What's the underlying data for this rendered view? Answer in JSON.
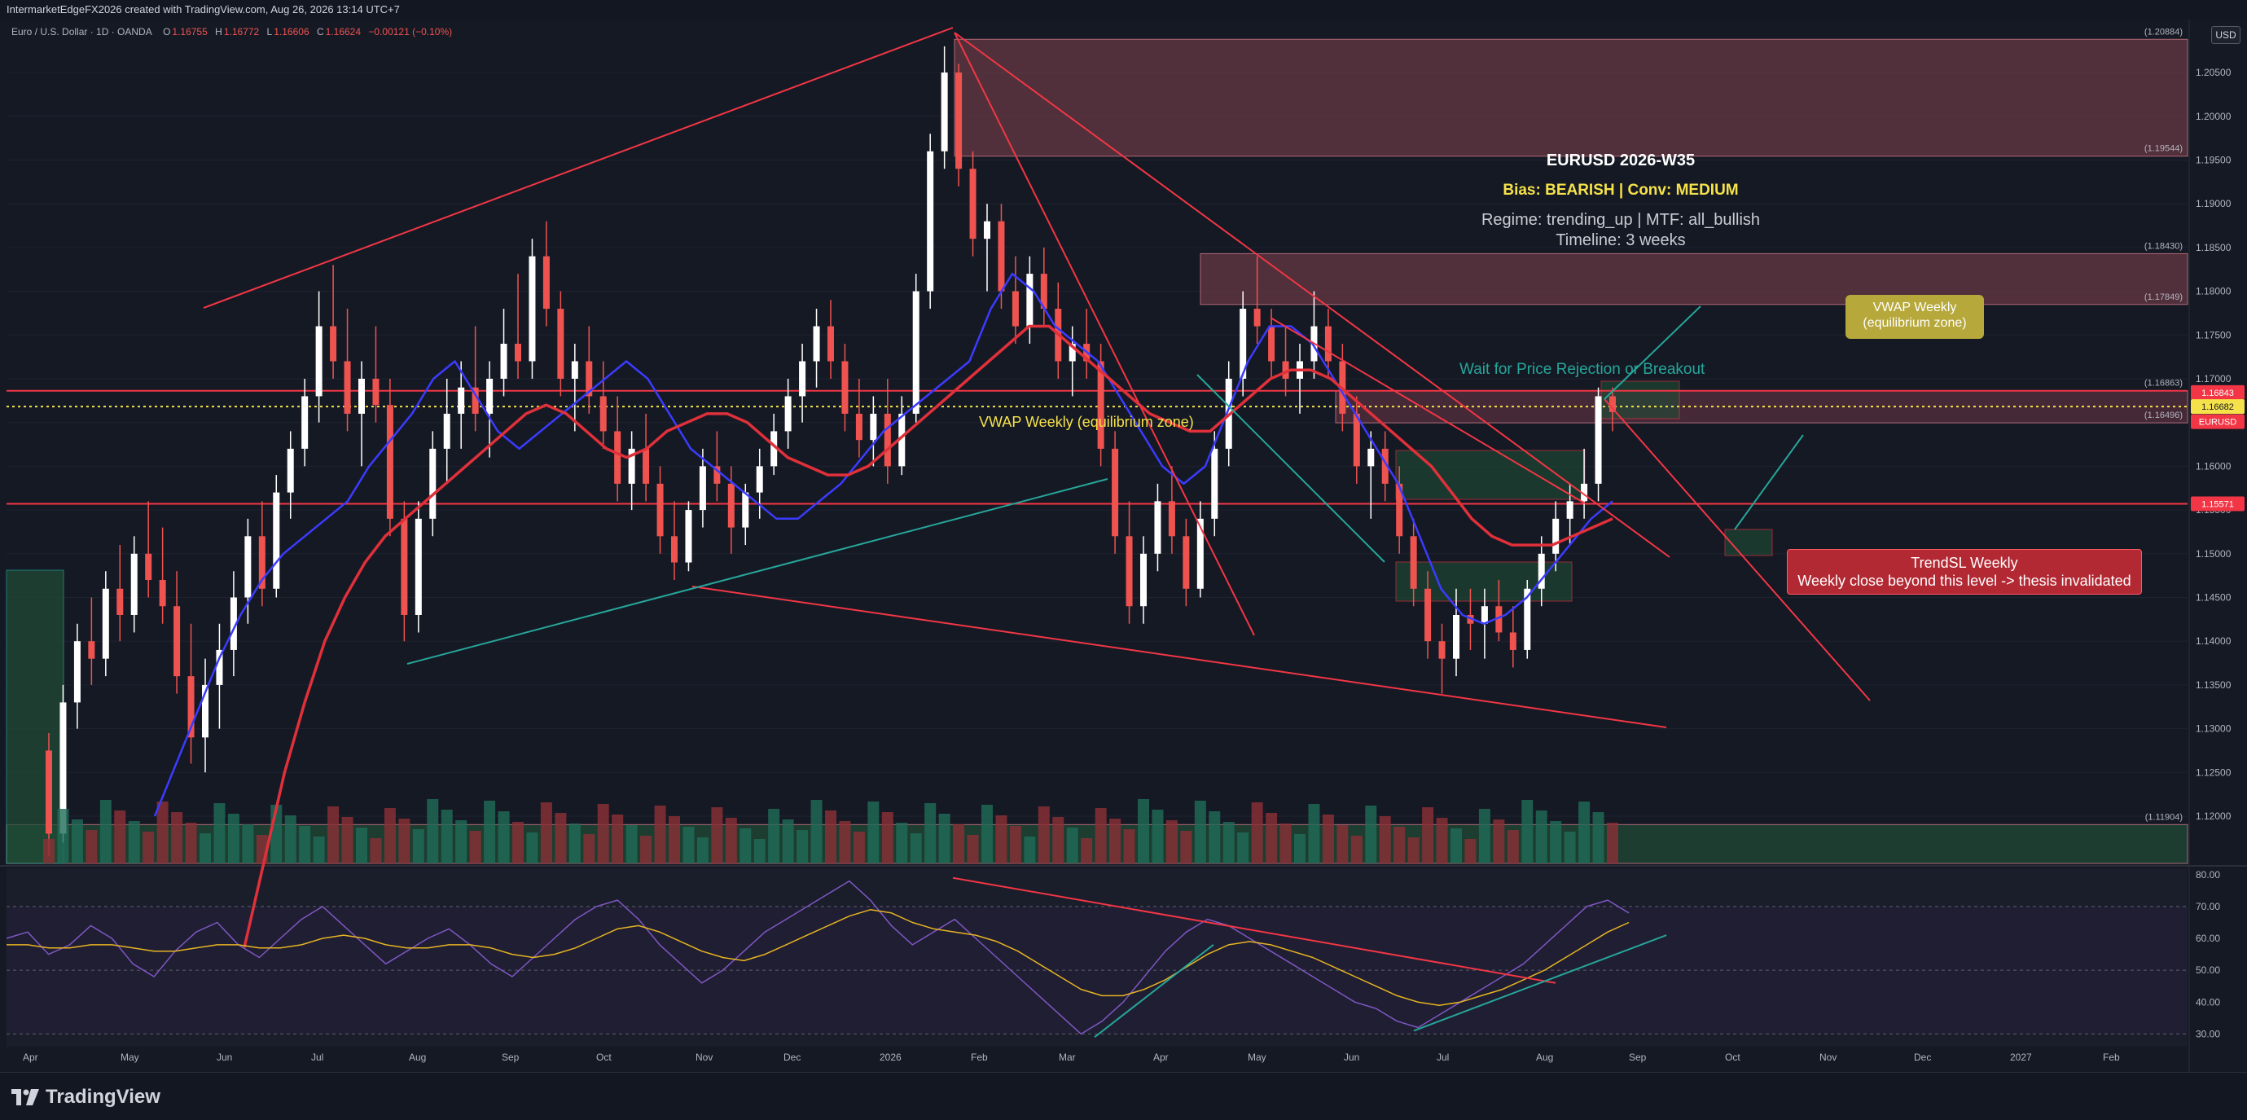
{
  "header": {
    "credit": "IntermarketEdgeFX2026 created with TradingView.com, Aug 26, 2026 13:14 UTC+7",
    "symbol": "Euro / U.S. Dollar · 1D · OANDA",
    "ohlc": {
      "o": "1.16755",
      "h": "1.16772",
      "l": "1.16606",
      "c": "1.16624",
      "chg": "−0.00121 (−0.10%)"
    },
    "currency": "USD"
  },
  "footer": {
    "logo_text": "TradingView"
  },
  "annotations": {
    "title": "EURUSD 2026-W35",
    "bias": "Bias: BEARISH | Conv: MEDIUM",
    "regime": "Regime: trending_up | MTF: all_bullish",
    "timeline": "Timeline: 3 weeks",
    "vwap_inline": "VWAP Weekly (equilibrium zone)",
    "wait": "Wait for Price Rejection or Breakout",
    "vwap_box_line1": "VWAP Weekly",
    "vwap_box_line2": "(equilibrium zone)",
    "trendsl_line1": "TrendSL Weekly",
    "trendsl_line2": "Weekly close beyond this level -> thesis invalidated"
  },
  "colors": {
    "background": "#151924",
    "bull": "#ffffff",
    "bear": "#ef5350",
    "red_line": "#f23645",
    "teal": "#26a69a",
    "zone_red": "#6b3a45",
    "zone_green": "#1f4d36",
    "ema_blue": "#3b3bff",
    "ema_red": "#e0303a",
    "rsi": "#7e57c2",
    "rsi_ma": "#e6b422",
    "vwap_box": "#b6a83a",
    "trendsl_box": "#b22833"
  },
  "chart_data": [
    {
      "type": "candlestick",
      "title": "Euro / U.S. Dollar · 1D · OANDA",
      "x_ticks": [
        "Apr",
        "May",
        "Jun",
        "Jul",
        "Aug",
        "Sep",
        "Oct",
        "Nov",
        "Dec",
        "2026",
        "Feb",
        "Mar",
        "Apr",
        "May",
        "Jun",
        "Jul",
        "Aug",
        "Sep",
        "Oct",
        "Nov",
        "Dec",
        "2027",
        "Feb"
      ],
      "y_ticks": [
        "1.20500",
        "1.20000",
        "1.19500",
        "1.19000",
        "1.18500",
        "1.18000",
        "1.17500",
        "1.17000",
        "1.16500",
        "1.16000",
        "1.15500",
        "1.15000",
        "1.14500",
        "1.14000",
        "1.13500",
        "1.13000",
        "1.12500",
        "1.12000"
      ],
      "ylim": [
        1.1146,
        1.2105
      ],
      "price_tags": [
        {
          "label": "(1.20884)",
          "value": 1.2088
        },
        {
          "label": "(1.19544)",
          "value": 1.19544
        },
        {
          "label": "(1.18430)",
          "value": 1.1843
        },
        {
          "label": "(1.17849)",
          "value": 1.17849
        },
        {
          "label": "(1.16863)",
          "value": 1.16863
        },
        {
          "label": "(1.16496)",
          "value": 1.16496
        },
        {
          "label": "(1.11904)",
          "value": 1.11904
        }
      ],
      "axis_badges": [
        {
          "label": "1.16843",
          "value": 1.16843,
          "color": "#f23645"
        },
        {
          "label": "1.16682",
          "value": 1.16682,
          "color": "#f5e24a"
        },
        {
          "label": "EURUSD",
          "value": 1.1651,
          "color": "#f23645"
        },
        {
          "label": "1.15571",
          "value": 1.15571,
          "color": "#f23645"
        }
      ],
      "horizontal_lines": [
        {
          "name": "resistance",
          "value": 1.16863,
          "color": "#f23645"
        },
        {
          "name": "trendsl-weekly",
          "value": 1.15571,
          "color": "#f23645"
        },
        {
          "name": "vwap-weekly",
          "value": 1.16682,
          "color": "#f5e24a",
          "style": "dotted"
        }
      ],
      "zones": [
        {
          "name": "supply-zone-upper",
          "from": 1.19544,
          "to": 1.2088,
          "color": "#6b3a45"
        },
        {
          "name": "supply-zone-mid",
          "from": 1.17849,
          "to": 1.1843,
          "color": "#6b3a45"
        },
        {
          "name": "supply-zone-near",
          "from": 1.16496,
          "to": 1.16863,
          "color": "#5a3040"
        },
        {
          "name": "demand-zone-bottom",
          "from": 1.1146,
          "to": 1.11904,
          "color": "#1f4d36"
        }
      ],
      "candles": [
        [
          1.1275,
          1.1295,
          1.1155,
          1.118
        ],
        [
          1.118,
          1.135,
          1.117,
          1.133
        ],
        [
          1.133,
          1.142,
          1.13,
          1.14
        ],
        [
          1.14,
          1.145,
          1.135,
          1.138
        ],
        [
          1.138,
          1.148,
          1.136,
          1.146
        ],
        [
          1.146,
          1.151,
          1.14,
          1.143
        ],
        [
          1.143,
          1.152,
          1.141,
          1.15
        ],
        [
          1.15,
          1.156,
          1.145,
          1.147
        ],
        [
          1.147,
          1.153,
          1.142,
          1.144
        ],
        [
          1.144,
          1.148,
          1.134,
          1.136
        ],
        [
          1.136,
          1.142,
          1.126,
          1.129
        ],
        [
          1.129,
          1.138,
          1.125,
          1.135
        ],
        [
          1.135,
          1.142,
          1.13,
          1.139
        ],
        [
          1.139,
          1.148,
          1.136,
          1.145
        ],
        [
          1.145,
          1.154,
          1.142,
          1.152
        ],
        [
          1.152,
          1.156,
          1.144,
          1.146
        ],
        [
          1.146,
          1.159,
          1.145,
          1.157
        ],
        [
          1.157,
          1.164,
          1.154,
          1.162
        ],
        [
          1.162,
          1.17,
          1.16,
          1.168
        ],
        [
          1.168,
          1.18,
          1.165,
          1.176
        ],
        [
          1.176,
          1.183,
          1.17,
          1.172
        ],
        [
          1.172,
          1.178,
          1.164,
          1.166
        ],
        [
          1.166,
          1.172,
          1.16,
          1.17
        ],
        [
          1.17,
          1.176,
          1.165,
          1.167
        ],
        [
          1.167,
          1.17,
          1.152,
          1.154
        ],
        [
          1.154,
          1.156,
          1.14,
          1.143
        ],
        [
          1.143,
          1.156,
          1.141,
          1.154
        ],
        [
          1.154,
          1.164,
          1.152,
          1.162
        ],
        [
          1.162,
          1.17,
          1.158,
          1.166
        ],
        [
          1.166,
          1.172,
          1.162,
          1.169
        ],
        [
          1.169,
          1.176,
          1.164,
          1.166
        ],
        [
          1.166,
          1.172,
          1.161,
          1.17
        ],
        [
          1.17,
          1.178,
          1.168,
          1.174
        ],
        [
          1.174,
          1.182,
          1.17,
          1.172
        ],
        [
          1.172,
          1.186,
          1.17,
          1.184
        ],
        [
          1.184,
          1.188,
          1.176,
          1.178
        ],
        [
          1.178,
          1.18,
          1.168,
          1.17
        ],
        [
          1.17,
          1.174,
          1.164,
          1.172
        ],
        [
          1.172,
          1.176,
          1.166,
          1.168
        ],
        [
          1.168,
          1.172,
          1.162,
          1.164
        ],
        [
          1.164,
          1.168,
          1.156,
          1.158
        ],
        [
          1.158,
          1.164,
          1.155,
          1.162
        ],
        [
          1.162,
          1.166,
          1.156,
          1.158
        ],
        [
          1.158,
          1.16,
          1.15,
          1.152
        ],
        [
          1.152,
          1.156,
          1.147,
          1.149
        ],
        [
          1.149,
          1.156,
          1.148,
          1.155
        ],
        [
          1.155,
          1.162,
          1.153,
          1.16
        ],
        [
          1.16,
          1.164,
          1.156,
          1.158
        ],
        [
          1.158,
          1.16,
          1.15,
          1.153
        ],
        [
          1.153,
          1.158,
          1.151,
          1.157
        ],
        [
          1.157,
          1.162,
          1.154,
          1.16
        ],
        [
          1.16,
          1.166,
          1.159,
          1.164
        ],
        [
          1.164,
          1.17,
          1.162,
          1.168
        ],
        [
          1.168,
          1.174,
          1.165,
          1.172
        ],
        [
          1.172,
          1.178,
          1.169,
          1.176
        ],
        [
          1.176,
          1.179,
          1.17,
          1.172
        ],
        [
          1.172,
          1.174,
          1.164,
          1.166
        ],
        [
          1.166,
          1.17,
          1.161,
          1.163
        ],
        [
          1.163,
          1.168,
          1.16,
          1.166
        ],
        [
          1.166,
          1.17,
          1.158,
          1.16
        ],
        [
          1.16,
          1.168,
          1.159,
          1.166
        ],
        [
          1.166,
          1.182,
          1.165,
          1.18
        ],
        [
          1.18,
          1.198,
          1.178,
          1.196
        ],
        [
          1.196,
          1.208,
          1.194,
          1.205
        ],
        [
          1.205,
          1.206,
          1.192,
          1.194
        ],
        [
          1.194,
          1.196,
          1.184,
          1.186
        ],
        [
          1.186,
          1.19,
          1.18,
          1.188
        ],
        [
          1.188,
          1.19,
          1.178,
          1.18
        ],
        [
          1.18,
          1.184,
          1.174,
          1.176
        ],
        [
          1.176,
          1.184,
          1.174,
          1.182
        ],
        [
          1.182,
          1.185,
          1.176,
          1.178
        ],
        [
          1.178,
          1.181,
          1.17,
          1.172
        ],
        [
          1.172,
          1.176,
          1.168,
          1.174
        ],
        [
          1.174,
          1.178,
          1.17,
          1.172
        ],
        [
          1.172,
          1.174,
          1.16,
          1.162
        ],
        [
          1.162,
          1.164,
          1.15,
          1.152
        ],
        [
          1.152,
          1.156,
          1.142,
          1.144
        ],
        [
          1.144,
          1.152,
          1.142,
          1.15
        ],
        [
          1.15,
          1.158,
          1.148,
          1.156
        ],
        [
          1.156,
          1.16,
          1.15,
          1.152
        ],
        [
          1.152,
          1.154,
          1.144,
          1.146
        ],
        [
          1.146,
          1.156,
          1.145,
          1.154
        ],
        [
          1.154,
          1.164,
          1.152,
          1.162
        ],
        [
          1.162,
          1.172,
          1.16,
          1.17
        ],
        [
          1.17,
          1.18,
          1.168,
          1.178
        ],
        [
          1.178,
          1.184,
          1.174,
          1.176
        ],
        [
          1.176,
          1.178,
          1.17,
          1.172
        ],
        [
          1.172,
          1.176,
          1.168,
          1.17
        ],
        [
          1.17,
          1.174,
          1.166,
          1.172
        ],
        [
          1.172,
          1.18,
          1.17,
          1.176
        ],
        [
          1.176,
          1.178,
          1.17,
          1.172
        ],
        [
          1.172,
          1.174,
          1.164,
          1.166
        ],
        [
          1.166,
          1.168,
          1.158,
          1.16
        ],
        [
          1.16,
          1.164,
          1.154,
          1.162
        ],
        [
          1.162,
          1.164,
          1.156,
          1.158
        ],
        [
          1.158,
          1.16,
          1.15,
          1.152
        ],
        [
          1.152,
          1.154,
          1.144,
          1.146
        ],
        [
          1.146,
          1.148,
          1.138,
          1.14
        ],
        [
          1.14,
          1.142,
          1.134,
          1.138
        ],
        [
          1.138,
          1.146,
          1.136,
          1.143
        ],
        [
          1.143,
          1.146,
          1.139,
          1.142
        ],
        [
          1.142,
          1.146,
          1.138,
          1.144
        ],
        [
          1.144,
          1.147,
          1.14,
          1.141
        ],
        [
          1.141,
          1.144,
          1.137,
          1.139
        ],
        [
          1.139,
          1.147,
          1.138,
          1.146
        ],
        [
          1.146,
          1.152,
          1.144,
          1.15
        ],
        [
          1.15,
          1.156,
          1.148,
          1.154
        ],
        [
          1.154,
          1.158,
          1.151,
          1.156
        ],
        [
          1.156,
          1.162,
          1.154,
          1.158
        ],
        [
          1.158,
          1.169,
          1.156,
          1.168
        ],
        [
          1.168,
          1.169,
          1.164,
          1.1662
        ]
      ],
      "ema_fast": [
        1.12,
        1.126,
        1.132,
        1.138,
        1.143,
        1.147,
        1.15,
        1.152,
        1.154,
        1.156,
        1.16,
        1.163,
        1.166,
        1.17,
        1.172,
        1.168,
        1.164,
        1.162,
        1.164,
        1.166,
        1.168,
        1.17,
        1.172,
        1.17,
        1.166,
        1.162,
        1.16,
        1.158,
        1.156,
        1.154,
        1.154,
        1.156,
        1.158,
        1.161,
        1.164,
        1.166,
        1.168,
        1.17,
        1.172,
        1.178,
        1.182,
        1.18,
        1.176,
        1.174,
        1.172,
        1.168,
        1.164,
        1.16,
        1.158,
        1.16,
        1.166,
        1.172,
        1.176,
        1.176,
        1.174,
        1.17,
        1.166,
        1.162,
        1.158,
        1.152,
        1.146,
        1.143,
        1.142,
        1.143,
        1.145,
        1.148,
        1.151,
        1.154,
        1.156
      ],
      "ema_slow": [
        1.105,
        1.115,
        1.125,
        1.133,
        1.14,
        1.145,
        1.149,
        1.152,
        1.154,
        1.156,
        1.158,
        1.16,
        1.162,
        1.164,
        1.166,
        1.167,
        1.166,
        1.164,
        1.162,
        1.161,
        1.162,
        1.164,
        1.165,
        1.166,
        1.166,
        1.165,
        1.163,
        1.161,
        1.16,
        1.159,
        1.159,
        1.16,
        1.162,
        1.164,
        1.166,
        1.168,
        1.17,
        1.172,
        1.174,
        1.176,
        1.176,
        1.174,
        1.172,
        1.17,
        1.168,
        1.166,
        1.165,
        1.164,
        1.164,
        1.166,
        1.168,
        1.17,
        1.171,
        1.171,
        1.17,
        1.168,
        1.166,
        1.164,
        1.162,
        1.16,
        1.157,
        1.154,
        1.152,
        1.151,
        1.151,
        1.151,
        1.152,
        1.153,
        1.154
      ]
    },
    {
      "type": "line",
      "title": "RSI",
      "y_ticks": [
        "80.00",
        "70.00",
        "60.00",
        "50.00",
        "40.00",
        "30.00"
      ],
      "ylim": [
        26,
        82
      ],
      "levels": [
        70,
        50,
        30
      ],
      "series": [
        {
          "values": [
            60,
            62,
            55,
            58,
            64,
            60,
            52,
            48,
            56,
            62,
            65,
            58,
            54,
            60,
            66,
            70,
            64,
            58,
            52,
            56,
            60,
            63,
            58,
            52,
            48,
            54,
            60,
            66,
            70,
            72,
            66,
            58,
            52,
            46,
            50,
            56,
            62,
            66,
            70,
            74,
            78,
            72,
            64,
            58,
            62,
            66,
            60,
            54,
            48,
            42,
            36,
            30,
            34,
            40,
            48,
            56,
            62,
            66,
            64,
            60,
            56,
            52,
            48,
            44,
            40,
            38,
            34,
            32,
            36,
            40,
            44,
            48,
            52,
            58,
            64,
            70,
            72,
            68
          ]
        },
        {
          "values": [
            58,
            58,
            57,
            57,
            58,
            58,
            57,
            56,
            56,
            57,
            58,
            58,
            57,
            57,
            58,
            60,
            61,
            60,
            58,
            57,
            57,
            58,
            58,
            57,
            55,
            54,
            55,
            57,
            60,
            63,
            64,
            62,
            59,
            56,
            54,
            53,
            55,
            58,
            61,
            64,
            67,
            69,
            68,
            65,
            63,
            62,
            61,
            59,
            56,
            52,
            48,
            44,
            42,
            42,
            44,
            47,
            51,
            55,
            58,
            59,
            58,
            56,
            54,
            51,
            48,
            45,
            42,
            40,
            39,
            40,
            42,
            44,
            47,
            50,
            54,
            58,
            62,
            65
          ]
        }
      ]
    }
  ]
}
